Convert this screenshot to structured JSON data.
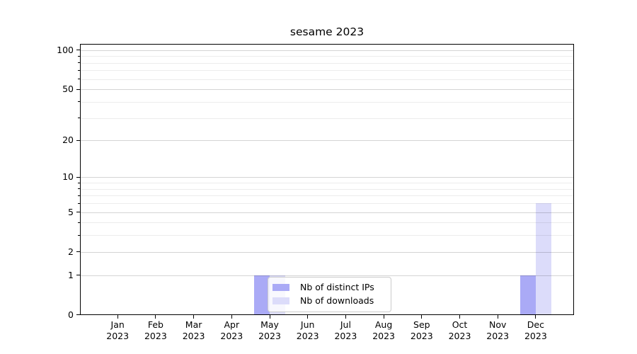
{
  "chart_data": {
    "type": "bar",
    "title": "sesame 2023",
    "x_tick_months": [
      "Jan",
      "Feb",
      "Mar",
      "Apr",
      "May",
      "Jun",
      "Jul",
      "Aug",
      "Sep",
      "Oct",
      "Nov",
      "Dec"
    ],
    "x_tick_year": "2023",
    "series": [
      {
        "name": "Nb of distinct IPs",
        "color": "#aaaaf6",
        "values": [
          0,
          0,
          0,
          0,
          1,
          0,
          0,
          0,
          0,
          0,
          0,
          1
        ]
      },
      {
        "name": "Nb of downloads",
        "color": "#dcdcfa",
        "values": [
          0,
          0,
          0,
          0,
          1,
          0,
          0,
          0,
          0,
          0,
          0,
          6
        ]
      }
    ],
    "yscale": "log1p",
    "y_major_ticks": [
      0,
      1,
      2,
      5,
      10,
      20,
      50,
      100
    ],
    "y_minor_ticks": [
      3,
      4,
      6,
      7,
      8,
      9,
      30,
      40,
      60,
      70,
      80,
      90
    ],
    "ylim": [
      0,
      112
    ],
    "grid": true,
    "legend_position": "inside-bottom-center-left"
  },
  "colors": {
    "background": "#ffffff",
    "grid_major": "#d4d4d4",
    "grid_minor": "#ececec",
    "spine": "#000000",
    "text": "#000000",
    "legend_border": "#cccccc",
    "legend_background": "rgba(255,255,255,0.8)"
  }
}
